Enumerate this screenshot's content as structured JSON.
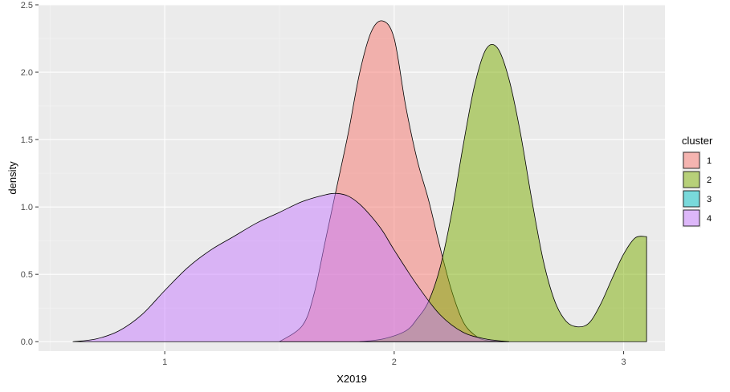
{
  "chart_data": {
    "type": "area",
    "xlabel": "X2019",
    "ylabel": "density",
    "xlim": [
      0.45,
      3.18
    ],
    "ylim": [
      -0.07,
      2.5
    ],
    "xticks": [
      1,
      2,
      3
    ],
    "yticks": [
      0.0,
      0.5,
      1.0,
      1.5,
      2.0,
      2.5
    ],
    "ytick_labels": [
      "0.0",
      "0.5",
      "1.0",
      "1.5",
      "2.0",
      "2.5"
    ],
    "grid": true,
    "legend": {
      "title": "cluster",
      "position": "right"
    },
    "series": [
      {
        "name": "1",
        "color": "#F8766D",
        "x": [
          1.5,
          1.6,
          1.65,
          1.7,
          1.75,
          1.8,
          1.85,
          1.9,
          1.95,
          2.0,
          2.05,
          2.1,
          2.15,
          2.2,
          2.25,
          2.3,
          2.35,
          2.4,
          2.5
        ],
        "y": [
          0.0,
          0.12,
          0.35,
          0.75,
          1.15,
          1.55,
          2.0,
          2.3,
          2.38,
          2.25,
          1.75,
          1.35,
          1.05,
          0.7,
          0.38,
          0.15,
          0.05,
          0.01,
          0.0
        ]
      },
      {
        "name": "2",
        "color": "#7CAE00",
        "x": [
          1.85,
          1.95,
          2.05,
          2.1,
          2.15,
          2.2,
          2.25,
          2.3,
          2.35,
          2.4,
          2.45,
          2.5,
          2.55,
          2.6,
          2.65,
          2.7,
          2.75,
          2.8,
          2.85,
          2.9,
          2.95,
          3.0,
          3.05,
          3.1
        ],
        "y": [
          0.0,
          0.02,
          0.08,
          0.17,
          0.3,
          0.55,
          0.95,
          1.45,
          1.9,
          2.17,
          2.18,
          1.95,
          1.55,
          1.05,
          0.6,
          0.3,
          0.15,
          0.11,
          0.14,
          0.28,
          0.47,
          0.65,
          0.77,
          0.78
        ]
      },
      {
        "name": "3",
        "color": "#00BFC4",
        "x": [],
        "y": []
      },
      {
        "name": "4",
        "color": "#C77CFF",
        "x": [
          0.6,
          0.7,
          0.8,
          0.9,
          1.0,
          1.1,
          1.2,
          1.3,
          1.4,
          1.5,
          1.6,
          1.7,
          1.75,
          1.8,
          1.85,
          1.9,
          1.95,
          2.0,
          2.1,
          2.2,
          2.3,
          2.4,
          2.5
        ],
        "y": [
          0.0,
          0.02,
          0.08,
          0.2,
          0.38,
          0.55,
          0.68,
          0.78,
          0.88,
          0.96,
          1.04,
          1.09,
          1.1,
          1.08,
          1.02,
          0.93,
          0.82,
          0.68,
          0.42,
          0.2,
          0.07,
          0.02,
          0.0
        ]
      }
    ]
  }
}
